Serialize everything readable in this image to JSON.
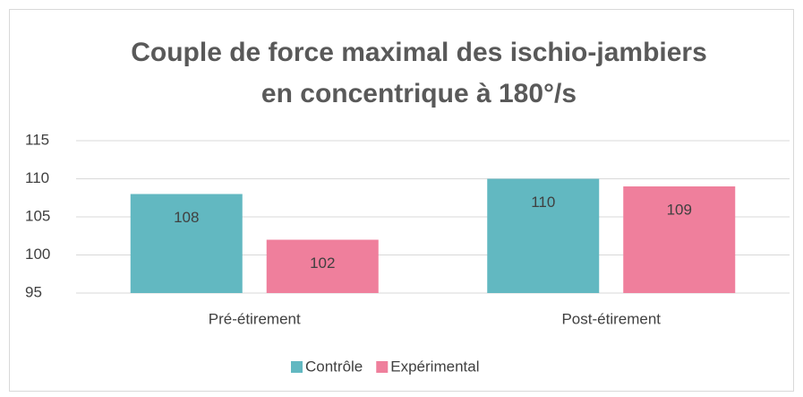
{
  "chart_data": {
    "type": "bar",
    "title": [
      "Couple de force maximal des ischio-jambiers",
      "en concentrique à 180°/s"
    ],
    "categories": [
      "Pré-étirement",
      "Post-étirement"
    ],
    "series": [
      {
        "name": "Contrôle",
        "color": "#62b8c1",
        "values": [
          108,
          110
        ]
      },
      {
        "name": "Expérimental",
        "color": "#ef7f9c",
        "values": [
          102,
          109
        ]
      }
    ],
    "ylim": [
      95,
      115
    ],
    "yticks": [
      95,
      100,
      105,
      110,
      115
    ],
    "grid": true,
    "legend": "bottom"
  }
}
